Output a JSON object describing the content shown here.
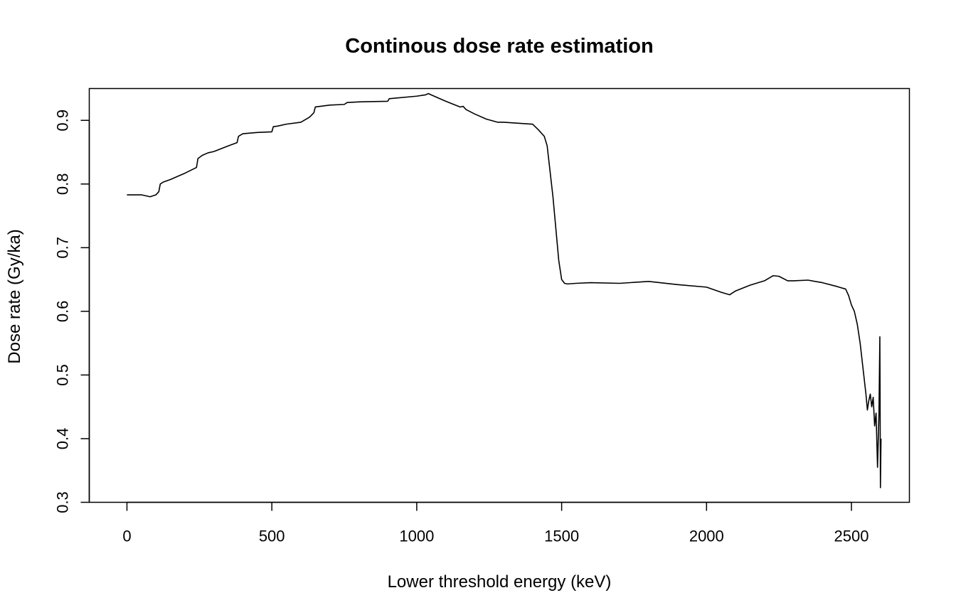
{
  "chart_data": {
    "type": "line",
    "title": "Continous dose rate estimation",
    "xlabel": "Lower threshold energy (keV)",
    "ylabel": "Dose rate (Gy/ka)",
    "xlim": [
      -130,
      2700
    ],
    "ylim": [
      0.3,
      0.95
    ],
    "x_ticks": [
      0,
      500,
      1000,
      1500,
      2000,
      2500
    ],
    "y_ticks": [
      0.3,
      0.4,
      0.5,
      0.6,
      0.7,
      0.8,
      0.9
    ],
    "x_tick_labels": [
      "0",
      "500",
      "1000",
      "1500",
      "2000",
      "2500"
    ],
    "y_tick_labels": [
      "0.3",
      "0.4",
      "0.5",
      "0.6",
      "0.7",
      "0.8",
      "0.9"
    ],
    "grid": false,
    "legend": "none",
    "line_color": "#000000",
    "series": [
      {
        "x": [
          0,
          50,
          80,
          100,
          110,
          115,
          125,
          150,
          200,
          240,
          245,
          260,
          280,
          300,
          350,
          380,
          385,
          400,
          450,
          500,
          505,
          520,
          550,
          600,
          630,
          645,
          650,
          700,
          750,
          760,
          800,
          900,
          905,
          1000,
          1030,
          1040,
          1060,
          1100,
          1150,
          1160,
          1170,
          1200,
          1240,
          1280,
          1300,
          1400,
          1420,
          1440,
          1450,
          1460,
          1470,
          1480,
          1490,
          1500,
          1510,
          1520,
          1550,
          1600,
          1700,
          1800,
          1900,
          2000,
          2050,
          2080,
          2100,
          2150,
          2200,
          2230,
          2250,
          2280,
          2300,
          2350,
          2400,
          2450,
          2480,
          2490,
          2500,
          2510,
          2520,
          2530,
          2540,
          2550,
          2555,
          2560,
          2565,
          2570,
          2575,
          2580,
          2585,
          2590,
          2595,
          2598,
          2600,
          2602
        ],
        "y": [
          0.783,
          0.783,
          0.78,
          0.783,
          0.788,
          0.8,
          0.803,
          0.807,
          0.817,
          0.826,
          0.84,
          0.845,
          0.849,
          0.851,
          0.86,
          0.865,
          0.875,
          0.879,
          0.881,
          0.882,
          0.89,
          0.891,
          0.894,
          0.897,
          0.905,
          0.912,
          0.921,
          0.924,
          0.925,
          0.928,
          0.929,
          0.93,
          0.934,
          0.938,
          0.94,
          0.942,
          0.938,
          0.93,
          0.921,
          0.922,
          0.917,
          0.91,
          0.902,
          0.897,
          0.897,
          0.894,
          0.885,
          0.875,
          0.86,
          0.82,
          0.78,
          0.73,
          0.68,
          0.65,
          0.644,
          0.643,
          0.644,
          0.645,
          0.644,
          0.647,
          0.642,
          0.638,
          0.63,
          0.626,
          0.632,
          0.641,
          0.648,
          0.656,
          0.655,
          0.648,
          0.648,
          0.649,
          0.645,
          0.639,
          0.635,
          0.625,
          0.61,
          0.6,
          0.58,
          0.55,
          0.51,
          0.47,
          0.445,
          0.46,
          0.47,
          0.45,
          0.465,
          0.42,
          0.44,
          0.355,
          0.44,
          0.56,
          0.323,
          0.4
        ]
      }
    ]
  }
}
